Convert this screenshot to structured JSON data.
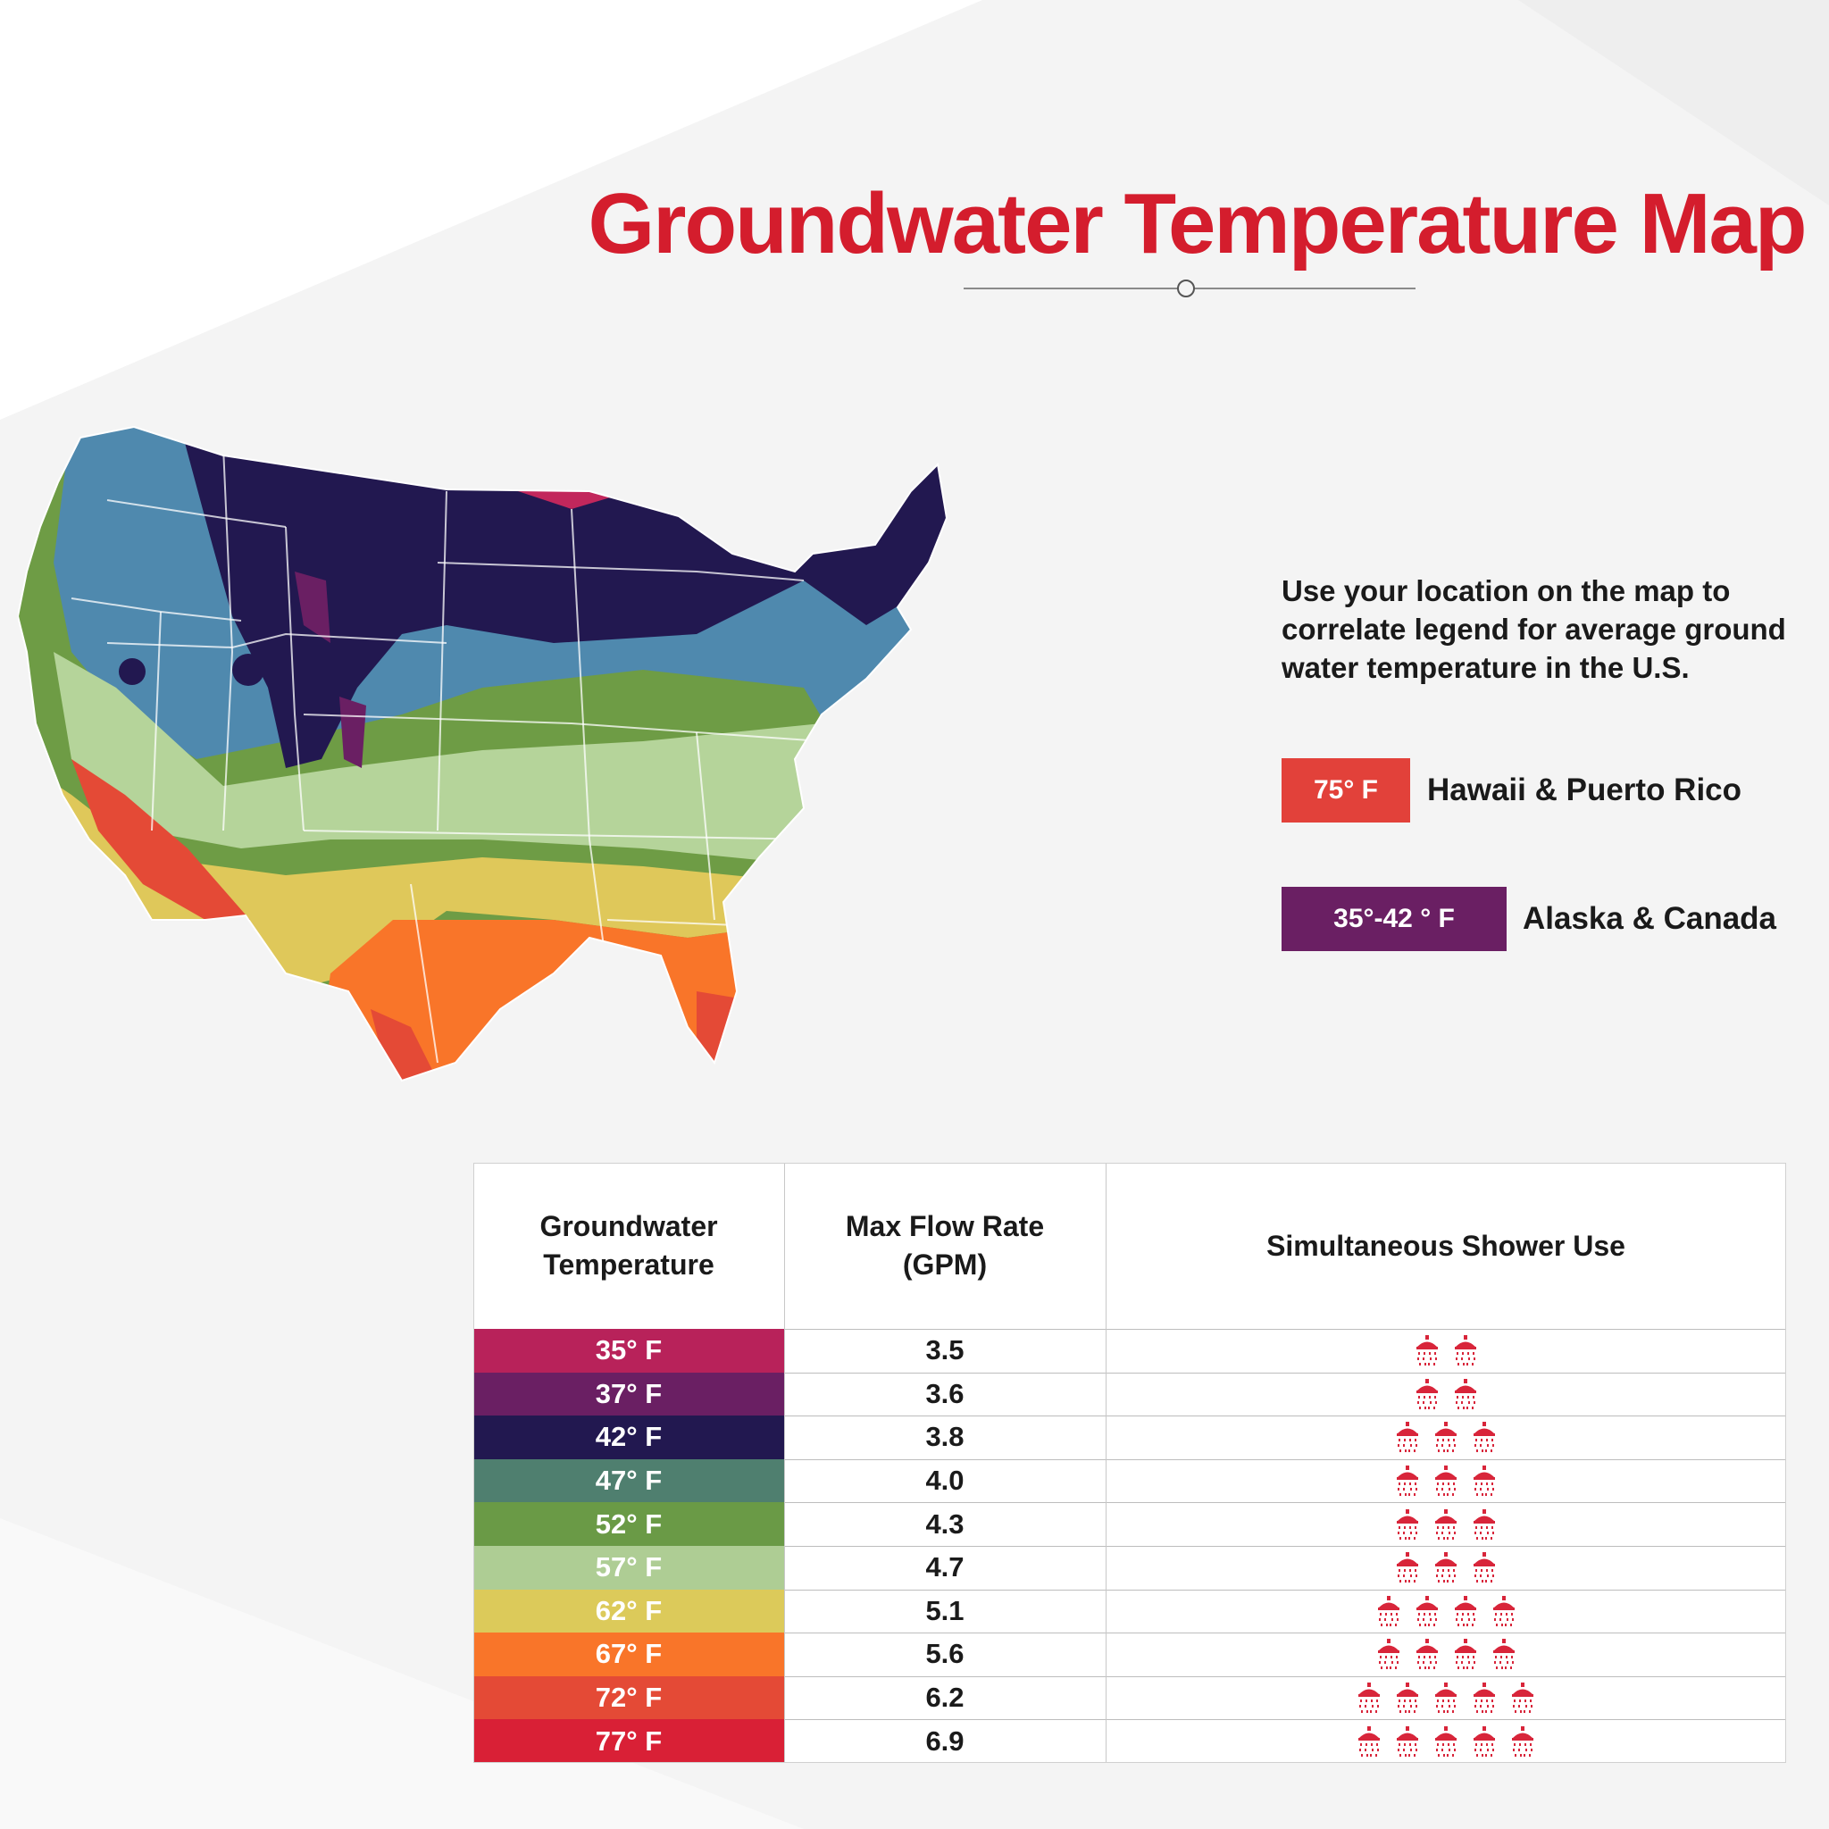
{
  "title": "Groundwater Temperature Map",
  "intro_text": "Use your location on the map to correlate legend for average ground water temperature  in the U.S.",
  "special_regions": [
    {
      "temp": "75° F",
      "label": "Hawaii & Puerto Rico",
      "color": "#e2413a"
    },
    {
      "temp": "35°-42 ° F",
      "label": "Alaska & Canada",
      "color": "#6a1f63"
    }
  ],
  "table": {
    "headers": {
      "temperature": "Groundwater Temperature",
      "flow": "Max Flow Rate (GPM)",
      "showers": "Simultaneous Shower Use"
    },
    "rows": [
      {
        "temp": "35° F",
        "flow": "3.5",
        "showers": 2,
        "color": "#b8225a"
      },
      {
        "temp": "37° F",
        "flow": "3.6",
        "showers": 2,
        "color": "#6a1f63"
      },
      {
        "temp": "42° F",
        "flow": "3.8",
        "showers": 3,
        "color": "#221850"
      },
      {
        "temp": "47° F",
        "flow": "4.0",
        "showers": 3,
        "color": "#4f7f6f"
      },
      {
        "temp": "52° F",
        "flow": "4.3",
        "showers": 3,
        "color": "#6a9a46"
      },
      {
        "temp": "57° F",
        "flow": "4.7",
        "showers": 3,
        "color": "#aecd94"
      },
      {
        "temp": "62° F",
        "flow": "5.1",
        "showers": 4,
        "color": "#dcca5a"
      },
      {
        "temp": "67° F",
        "flow": "5.6",
        "showers": 4,
        "color": "#f97529"
      },
      {
        "temp": "72° F",
        "flow": "6.2",
        "showers": 5,
        "color": "#e44a36"
      },
      {
        "temp": "77° F",
        "flow": "6.9",
        "showers": 5,
        "color": "#d92036"
      }
    ]
  },
  "map_zone_colors": {
    "pink": "#c2275c",
    "purple": "#6a1f63",
    "navy": "#221850",
    "blue": "#4f89ae",
    "green": "#6e9c45",
    "light_green": "#b5d49a",
    "yellow": "#dfc85a",
    "orange": "#f97529",
    "red": "#e44a36"
  },
  "shower_icon": "shower-head-icon",
  "shower_icon_color": "#d8253a"
}
